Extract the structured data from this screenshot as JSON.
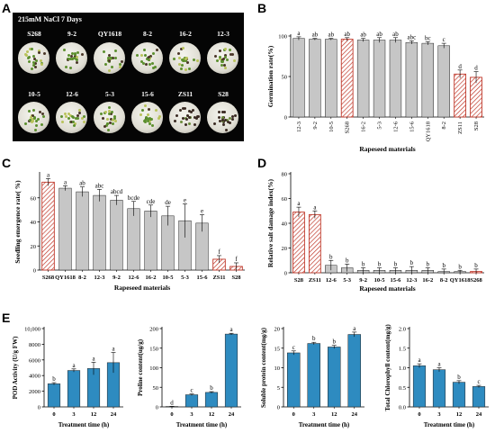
{
  "panels": {
    "A": {
      "label": "A",
      "caption": "215mM NaCl 7 Days",
      "row1": [
        "S268",
        "9-2",
        "QY1618",
        "8-2",
        "16-2",
        "12-3"
      ],
      "row2": [
        "10-5",
        "12-6",
        "5-3",
        "15-6",
        "ZS11",
        "S28"
      ]
    },
    "B": {
      "label": "B"
    },
    "C": {
      "label": "C"
    },
    "D": {
      "label": "D"
    },
    "E": {
      "label": "E"
    }
  },
  "colors": {
    "gray_bar": "#c6c6c6",
    "hatched_bar": "#c0392b",
    "blue_bar": "#2e8bc0"
  },
  "chart_data": [
    {
      "id": "B",
      "type": "bar",
      "ylabel": "Germination rate(%)",
      "xlabel": "Rapeseed materials",
      "ylim": [
        0,
        100
      ],
      "yticks": [
        0,
        50,
        100
      ],
      "categories": [
        "12-3",
        "9-2",
        "10-5",
        "S268",
        "16-2",
        "5-3",
        "12-6",
        "15-6",
        "QY1618",
        "8-2",
        "ZS11",
        "S28"
      ],
      "values": [
        97,
        96,
        96,
        96,
        95,
        95,
        95,
        92,
        91,
        88,
        53,
        49
      ],
      "errors": [
        2,
        1,
        1,
        2,
        2,
        3,
        3,
        2,
        2,
        3,
        5,
        7
      ],
      "letters": [
        "a",
        "ab",
        "ab",
        "ab",
        "ab",
        "ab",
        "ab",
        "abc",
        "bc",
        "c",
        "d",
        "d"
      ],
      "hatched": [
        false,
        false,
        false,
        true,
        false,
        false,
        false,
        false,
        false,
        false,
        true,
        true
      ]
    },
    {
      "id": "C",
      "type": "bar",
      "ylabel": "Seedling emergence rate( %)",
      "xlabel": "Rapeseed materials",
      "ylim": [
        0,
        80
      ],
      "yticks": [
        0,
        20,
        40,
        60
      ],
      "categories": [
        "S268",
        "QY1618",
        "8-2",
        "12-3",
        "9-2",
        "12-6",
        "16-2",
        "10-5",
        "5-3",
        "15-6",
        "ZS11",
        "S28"
      ],
      "values": [
        73,
        68,
        65,
        62,
        58,
        51,
        49,
        45,
        41,
        39,
        9,
        3
      ],
      "errors": [
        3,
        2,
        4,
        5,
        4,
        6,
        5,
        8,
        14,
        7,
        3,
        3
      ],
      "letters": [
        "a",
        "a",
        "ab",
        "abc",
        "abcd",
        "bcde",
        "cde",
        "de",
        "e",
        "e",
        "f",
        "f"
      ],
      "hatched": [
        true,
        false,
        false,
        false,
        false,
        false,
        false,
        false,
        false,
        false,
        true,
        true
      ]
    },
    {
      "id": "D",
      "type": "bar",
      "ylabel": "Relative salt damage index(%)",
      "xlabel": "Rapeseed materials",
      "ylim": [
        0,
        80
      ],
      "yticks": [
        0,
        20,
        40,
        60,
        80
      ],
      "categories": [
        "S28",
        "ZS11",
        "12-6",
        "5-3",
        "9-2",
        "10-5",
        "15-6",
        "12-3",
        "16-2",
        "8-2",
        "QY1618",
        "S268"
      ],
      "values": [
        49,
        47,
        6,
        4,
        2,
        2,
        2,
        2,
        2,
        1,
        1,
        1
      ],
      "errors": [
        4,
        3,
        4,
        3,
        2,
        2,
        2,
        3,
        2,
        2,
        1,
        2
      ],
      "letters": [
        "a",
        "a",
        "b",
        "b",
        "b",
        "b",
        "b",
        "b",
        "b",
        "b",
        "b",
        "b"
      ],
      "hatched": [
        true,
        true,
        false,
        false,
        false,
        false,
        false,
        false,
        false,
        false,
        false,
        true
      ]
    },
    {
      "id": "E1",
      "type": "bar",
      "ylabel": "POD Activity (U/g  FW)",
      "xlabel": "Treatment time (h)",
      "ylim": [
        0,
        10000
      ],
      "yticks": [
        0,
        2000,
        4000,
        6000,
        8000,
        10000
      ],
      "ytick_labels": [
        "0",
        "2000",
        "4000",
        "6000",
        "8000",
        "10,000"
      ],
      "categories": [
        "0",
        "3",
        "12",
        "24"
      ],
      "values": [
        2950,
        4650,
        4900,
        5650
      ],
      "errors": [
        150,
        200,
        800,
        1300
      ],
      "letters": [
        "b",
        "a",
        "a",
        "a"
      ]
    },
    {
      "id": "E2",
      "type": "bar",
      "ylabel": "Proline content(ug/g)",
      "xlabel": "Treatment time (h)",
      "ylim": [
        0,
        200
      ],
      "yticks": [
        0,
        50,
        100,
        150,
        200
      ],
      "categories": [
        "0",
        "3",
        "12",
        "24"
      ],
      "values": [
        1,
        31,
        37,
        186
      ],
      "errors": [
        0.5,
        2,
        2,
        2
      ],
      "letters": [
        "d",
        "c",
        "b",
        "a"
      ]
    },
    {
      "id": "E3",
      "type": "bar",
      "ylabel": "Soluble protein content(mg/g)",
      "xlabel": "Treatment time (h)",
      "ylim": [
        0,
        20
      ],
      "yticks": [
        0,
        5,
        10,
        15,
        20
      ],
      "categories": [
        "0",
        "3",
        "12",
        "24"
      ],
      "values": [
        13.8,
        16.2,
        15.3,
        18.5
      ],
      "errors": [
        0.5,
        0.3,
        0.4,
        0.6
      ],
      "letters": [
        "c",
        "b",
        "b",
        "a"
      ]
    },
    {
      "id": "E4",
      "type": "bar",
      "ylabel": "Total Chlorophyll content(mg/g)",
      "xlabel": "Treatment time (h)",
      "ylim": [
        0,
        2.0
      ],
      "yticks": [
        0.0,
        0.5,
        1.0,
        1.5,
        2.0
      ],
      "ytick_labels": [
        "0.0",
        "0.5",
        "1.0",
        "1.5",
        "2.0"
      ],
      "categories": [
        "0",
        "3",
        "12",
        "24"
      ],
      "values": [
        1.05,
        0.95,
        0.63,
        0.52
      ],
      "errors": [
        0.05,
        0.05,
        0.04,
        0.03
      ],
      "letters": [
        "a",
        "a",
        "b",
        "c"
      ]
    }
  ]
}
